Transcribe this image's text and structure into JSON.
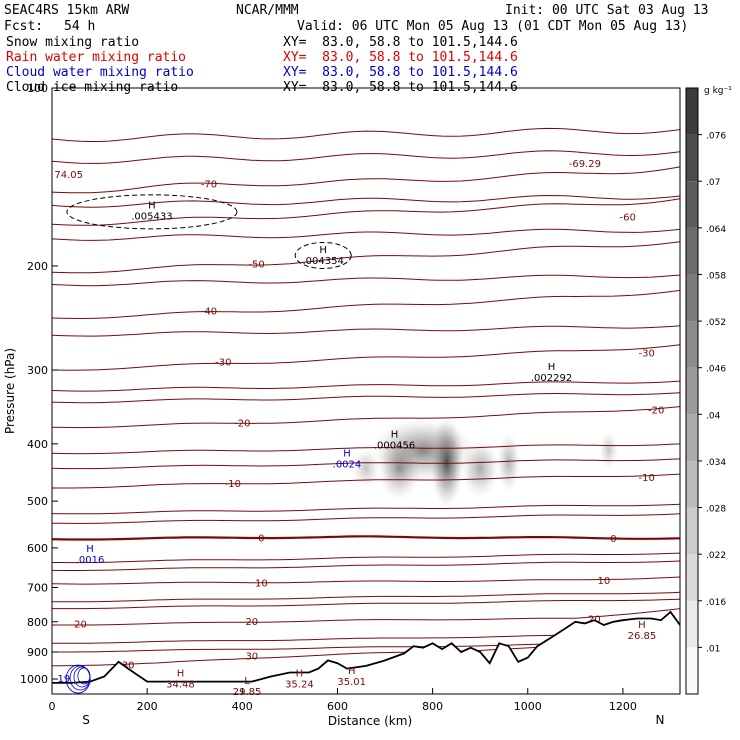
{
  "header": {
    "model": "SEAC4RS 15km ARW",
    "org": "NCAR/MMM",
    "init": "Init: 00 UTC Sat 03 Aug 13",
    "fcst_label": "Fcst:",
    "fcst_value": "54 h",
    "valid": "Valid: 06 UTC Mon 05 Aug 13 (01 CDT Mon 05 Aug 13)",
    "fields": [
      {
        "label": "Snow mixing ratio",
        "color": "#000000",
        "xy": "XY=  83.0, 58.8 to 101.5,144.6"
      },
      {
        "label": "Rain water mixing ratio",
        "color": "#e00000",
        "xy": "XY=  83.0, 58.8 to 101.5,144.6"
      },
      {
        "label": "Cloud water mixing ratio",
        "color": "#0000cc",
        "xy": "XY=  83.0, 58.8 to 101.5,144.6"
      },
      {
        "label": "Cloud ice mixing ratio",
        "color": "#000000",
        "xy": "XY=  83.0, 58.8 to 101.5,144.6"
      }
    ]
  },
  "chart_data": {
    "type": "cross-section",
    "xlabel": "Distance (km)",
    "ylabel": "Pressure (hPa)",
    "x_range": [
      0,
      1320
    ],
    "y_range": [
      100,
      1060
    ],
    "y_scale": "log-pressure",
    "x_ticks": [
      0,
      200,
      400,
      600,
      800,
      1000,
      1200
    ],
    "y_ticks": [
      100,
      200,
      300,
      400,
      500,
      600,
      700,
      800,
      900,
      1000
    ],
    "x_endpoints": {
      "left": "S",
      "right": "N"
    },
    "colorbar": {
      "unit": "g kg⁻¹",
      "levels": [
        ".01",
        ".016",
        ".022",
        ".028",
        ".034",
        ".04",
        ".046",
        ".052",
        ".058",
        ".064",
        ".07",
        ".076"
      ]
    },
    "temperature_labels": [
      "-70",
      "-60",
      "-50",
      "-40",
      "-30",
      "-20",
      "-10",
      "0",
      "10",
      "20",
      "30"
    ],
    "extrema": [
      {
        "kind": "H",
        "value": ".005433",
        "x": 210,
        "p": 160
      },
      {
        "kind": "H",
        "value": ".004354",
        "x": 570,
        "p": 190
      },
      {
        "kind": "H",
        "value": ".002292",
        "x": 1050,
        "p": 300
      },
      {
        "kind": "H",
        "value": ".000456",
        "x": 720,
        "p": 390
      },
      {
        "kind": "H",
        "value": ".0024",
        "x": 620,
        "p": 420
      },
      {
        "kind": "H",
        "value": ".0016",
        "x": 80,
        "p": 610
      },
      {
        "kind": "H",
        "value": "34.48",
        "x": 270,
        "p": 990
      },
      {
        "kind": "L",
        "value": "29.85",
        "x": 410,
        "p": 1020
      },
      {
        "kind": "H",
        "value": "35.24",
        "x": 520,
        "p": 990
      },
      {
        "kind": "H",
        "value": "35.01",
        "x": 630,
        "p": 980
      },
      {
        "kind": "H",
        "value": "26.85",
        "x": 1240,
        "p": 820
      }
    ],
    "corner_values": [
      "74.05",
      "-69.29"
    ],
    "low_left_value": "19",
    "terrain": [
      [
        0,
        1015
      ],
      [
        40,
        1015
      ],
      [
        80,
        1010
      ],
      [
        110,
        990
      ],
      [
        140,
        935
      ],
      [
        160,
        960
      ],
      [
        200,
        1010
      ],
      [
        260,
        1010
      ],
      [
        340,
        1010
      ],
      [
        420,
        1010
      ],
      [
        460,
        990
      ],
      [
        500,
        975
      ],
      [
        540,
        975
      ],
      [
        560,
        960
      ],
      [
        580,
        930
      ],
      [
        600,
        940
      ],
      [
        620,
        960
      ],
      [
        660,
        950
      ],
      [
        700,
        930
      ],
      [
        740,
        905
      ],
      [
        760,
        880
      ],
      [
        780,
        885
      ],
      [
        800,
        870
      ],
      [
        820,
        890
      ],
      [
        840,
        870
      ],
      [
        860,
        900
      ],
      [
        880,
        885
      ],
      [
        900,
        900
      ],
      [
        920,
        940
      ],
      [
        940,
        870
      ],
      [
        960,
        880
      ],
      [
        980,
        935
      ],
      [
        1000,
        920
      ],
      [
        1020,
        880
      ],
      [
        1040,
        860
      ],
      [
        1060,
        840
      ],
      [
        1080,
        820
      ],
      [
        1100,
        800
      ],
      [
        1120,
        805
      ],
      [
        1140,
        795
      ],
      [
        1160,
        810
      ],
      [
        1180,
        800
      ],
      [
        1200,
        795
      ],
      [
        1230,
        790
      ],
      [
        1260,
        790
      ],
      [
        1280,
        795
      ],
      [
        1300,
        770
      ],
      [
        1320,
        810
      ]
    ]
  }
}
